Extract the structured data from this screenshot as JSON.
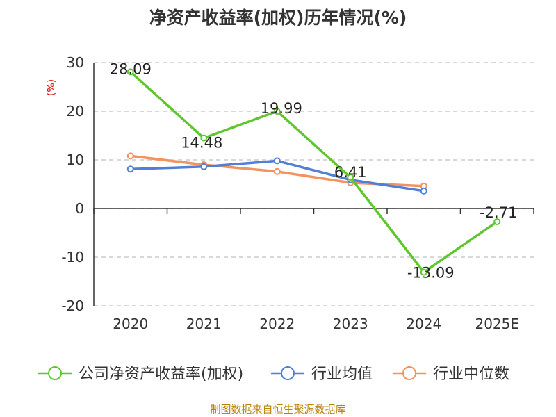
{
  "chart_data": {
    "type": "line",
    "title": "净资产收益率(加权)历年情况(%)",
    "ylabel": "(%)",
    "categories": [
      "2020",
      "2021",
      "2022",
      "2023",
      "2024",
      "2025E"
    ],
    "ylim": [
      -20,
      30
    ],
    "yticks": [
      30,
      20,
      10,
      0,
      -10,
      -20
    ],
    "grid": true,
    "legend_position": "bottom",
    "series": [
      {
        "name": "公司净资产收益率(加权)",
        "color": "#5ec62e",
        "values": [
          28.09,
          14.48,
          19.99,
          6.41,
          -13.09,
          -2.71
        ],
        "labels": [
          "28.09",
          "14.48",
          "19.99",
          "6.41",
          "-13.09",
          "-2.71"
        ]
      },
      {
        "name": "行业均值",
        "color": "#4f7fd8",
        "values": [
          8.1,
          8.6,
          9.8,
          5.9,
          3.6,
          null
        ]
      },
      {
        "name": "行业中位数",
        "color": "#f3915f",
        "values": [
          10.8,
          9.0,
          7.6,
          5.3,
          4.6,
          null
        ]
      }
    ]
  },
  "source": "制图数据来自恒生聚源数据库"
}
